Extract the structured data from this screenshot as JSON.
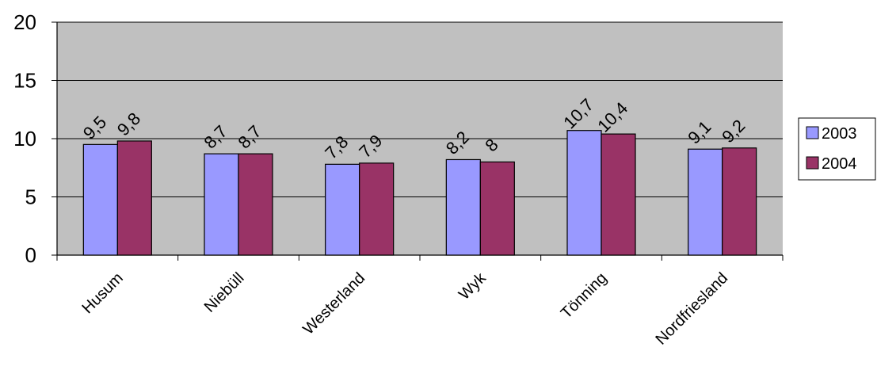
{
  "chart_data": {
    "type": "bar",
    "categories": [
      "Husum",
      "Niebüll",
      "Westerland",
      "Wyk",
      "Tönning",
      "Nordfriesland"
    ],
    "series": [
      {
        "name": "2003",
        "values": [
          9.5,
          8.7,
          7.8,
          8.2,
          10.7,
          9.1
        ],
        "labels": [
          "9,5",
          "8,7",
          "7,8",
          "8,2",
          "10,7",
          "9,1"
        ],
        "color": "#9999ff"
      },
      {
        "name": "2004",
        "values": [
          9.8,
          8.7,
          7.9,
          8.0,
          10.4,
          9.2
        ],
        "labels": [
          "9,8",
          "8,7",
          "7,9",
          "8",
          "10,4",
          "9,2"
        ],
        "color": "#993366"
      }
    ],
    "yticks": [
      0,
      5,
      10,
      15,
      20
    ],
    "ylim": [
      0,
      20
    ],
    "grid": true,
    "plot_background": "#c0c0c0",
    "legend": "right"
  }
}
